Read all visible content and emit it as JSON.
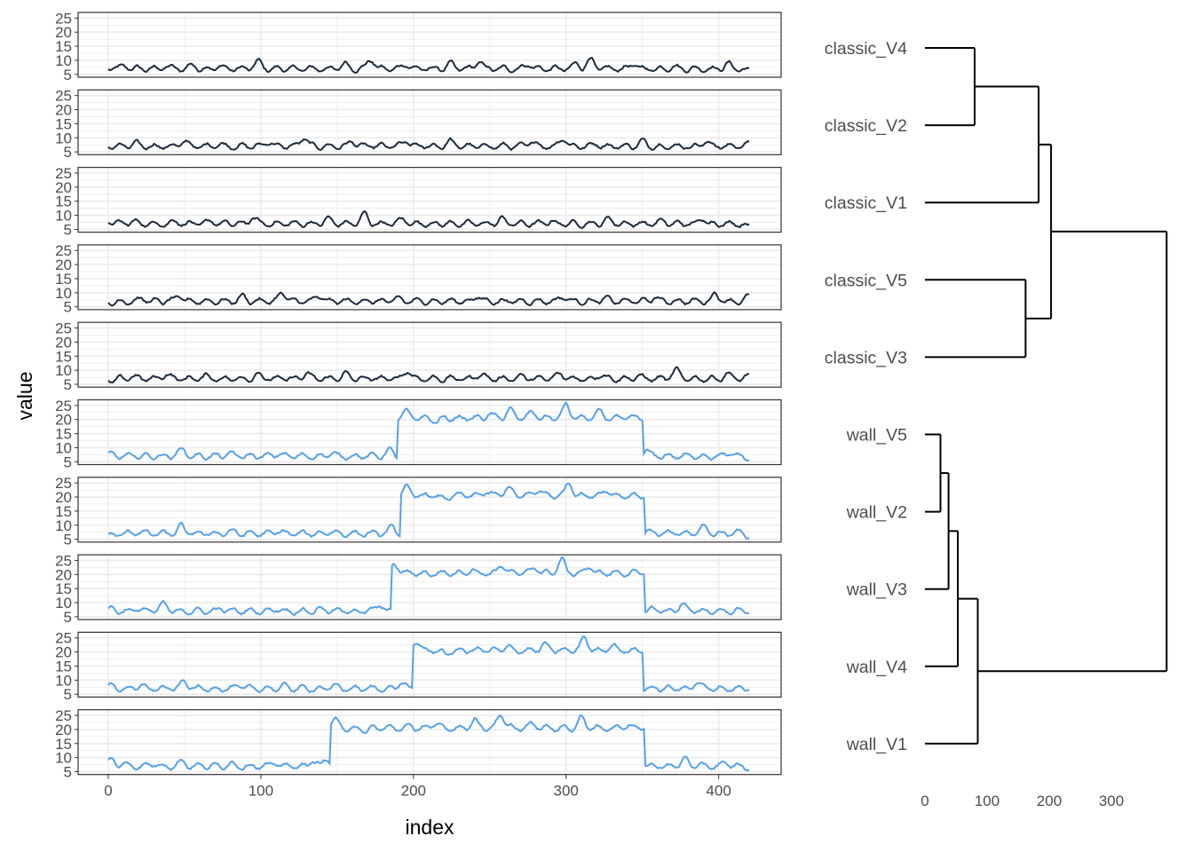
{
  "chart_data": [
    {
      "type": "line",
      "layout": "small-multiples",
      "xlabel": "index",
      "ylabel": "value",
      "xlim": [
        0,
        420
      ],
      "ylim": [
        4,
        27
      ],
      "x_ticks": [
        0,
        100,
        200,
        300,
        400
      ],
      "y_ticks": [
        5,
        10,
        15,
        20,
        25
      ],
      "grid": true,
      "theme": "bw",
      "baseline": 7,
      "elevated_level": 20.5,
      "series": [
        {
          "id": "classic_V4",
          "group": "classic",
          "color": "#1c2a3a",
          "peaks": [
            [
              2,
              7.5
            ],
            [
              11,
              8
            ],
            [
              38,
              8
            ],
            [
              55,
              8.5
            ],
            [
              73,
              8
            ],
            [
              98,
              10
            ],
            [
              155,
              9
            ],
            [
              172,
              11
            ],
            [
              195,
              9
            ],
            [
              224,
              9
            ],
            [
              243,
              10
            ],
            [
              275,
              9
            ],
            [
              307,
              9
            ],
            [
              316,
              11
            ],
            [
              344,
              9
            ],
            [
              370,
              8
            ],
            [
              406,
              9
            ],
            [
              420,
              6
            ]
          ]
        },
        {
          "id": "classic_V2",
          "group": "classic",
          "color": "#1c2a3a",
          "peaks": [
            [
              2,
              7
            ],
            [
              18,
              8
            ],
            [
              50,
              9
            ],
            [
              72,
              8
            ],
            [
              105,
              9
            ],
            [
              128,
              10.5
            ],
            [
              160,
              9
            ],
            [
              195,
              9
            ],
            [
              224,
              9
            ],
            [
              278,
              9
            ],
            [
              298,
              10.5
            ],
            [
              320,
              8
            ],
            [
              350,
              9
            ],
            [
              392,
              9
            ],
            [
              418,
              8
            ]
          ]
        },
        {
          "id": "classic_V1",
          "group": "classic",
          "color": "#1c2a3a",
          "peaks": [
            [
              2,
              8
            ],
            [
              16,
              8
            ],
            [
              44,
              8
            ],
            [
              68,
              8
            ],
            [
              95,
              9.5
            ],
            [
              144,
              9
            ],
            [
              168,
              11
            ],
            [
              193,
              9
            ],
            [
              258,
              9
            ],
            [
              290,
              8
            ],
            [
              328,
              9
            ],
            [
              362,
              8
            ],
            [
              390,
              9
            ],
            [
              420,
              6
            ]
          ]
        },
        {
          "id": "classic_V5",
          "group": "classic",
          "color": "#1c2a3a",
          "peaks": [
            [
              3,
              6
            ],
            [
              22,
              8
            ],
            [
              46,
              9
            ],
            [
              88,
              9
            ],
            [
              114,
              10.5
            ],
            [
              138,
              9
            ],
            [
              190,
              8
            ],
            [
              242,
              9
            ],
            [
              298,
              9
            ],
            [
              326,
              8
            ],
            [
              358,
              8.5
            ],
            [
              398,
              10
            ],
            [
              420,
              9
            ]
          ]
        },
        {
          "id": "classic_V3",
          "group": "classic",
          "color": "#1c2a3a",
          "peaks": [
            [
              3,
              6
            ],
            [
              16,
              8
            ],
            [
              38,
              9
            ],
            [
              64,
              8
            ],
            [
              98,
              9
            ],
            [
              130,
              9
            ],
            [
              155,
              9
            ],
            [
              196,
              10.5
            ],
            [
              244,
              9
            ],
            [
              270,
              8
            ],
            [
              296,
              9
            ],
            [
              323,
              9
            ],
            [
              348,
              8
            ],
            [
              372,
              10.5
            ],
            [
              406,
              9
            ],
            [
              420,
              8
            ]
          ]
        },
        {
          "id": "wall_V5",
          "group": "wall",
          "color": "#56a0ea",
          "change": [
            190,
            351
          ],
          "peaks": [
            [
              2,
              7.5
            ],
            [
              20,
              7
            ],
            [
              48,
              10
            ],
            [
              80,
              8
            ],
            [
              112,
              8
            ],
            [
              146,
              8
            ],
            [
              172,
              7
            ],
            [
              184,
              9.5
            ],
            [
              195,
              23
            ],
            [
              215,
              19
            ],
            [
              250,
              22
            ],
            [
              263,
              24
            ],
            [
              278,
              23
            ],
            [
              300,
              26
            ],
            [
              322,
              23
            ],
            [
              352,
              9.5
            ],
            [
              380,
              7
            ],
            [
              407,
              8
            ],
            [
              420,
              6
            ]
          ]
        },
        {
          "id": "wall_V2",
          "group": "wall",
          "color": "#56a0ea",
          "change": [
            192,
            352
          ],
          "peaks": [
            [
              2,
              6
            ],
            [
              20,
              8
            ],
            [
              48,
              10
            ],
            [
              80,
              8
            ],
            [
              112,
              8
            ],
            [
              146,
              8
            ],
            [
              172,
              7
            ],
            [
              186,
              9.5
            ],
            [
              195,
              24
            ],
            [
              220,
              19
            ],
            [
              248,
              22
            ],
            [
              262,
              24
            ],
            [
              282,
              23
            ],
            [
              302,
              26
            ],
            [
              326,
              23
            ],
            [
              354,
              8
            ],
            [
              390,
              10
            ],
            [
              412,
              8
            ],
            [
              420,
              6
            ]
          ]
        },
        {
          "id": "wall_V3",
          "group": "wall",
          "color": "#56a0ea",
          "change": [
            186,
            352
          ],
          "peaks": [
            [
              2,
              8
            ],
            [
              20,
              8
            ],
            [
              36,
              10
            ],
            [
              74,
              8
            ],
            [
              110,
              8
            ],
            [
              140,
              8
            ],
            [
              168,
              7
            ],
            [
              178,
              9.5
            ],
            [
              188,
              24
            ],
            [
              210,
              20
            ],
            [
              238,
              22
            ],
            [
              258,
              24
            ],
            [
              280,
              23
            ],
            [
              297,
              26
            ],
            [
              315,
              23
            ],
            [
              358,
              8
            ],
            [
              376,
              10
            ],
            [
              404,
              7
            ],
            [
              420,
              7.5
            ]
          ]
        },
        {
          "id": "wall_V4",
          "group": "wall",
          "color": "#56a0ea",
          "change": [
            200,
            351
          ],
          "peaks": [
            [
              2,
              8
            ],
            [
              22,
              8
            ],
            [
              50,
              10
            ],
            [
              86,
              8
            ],
            [
              116,
              8
            ],
            [
              148,
              8
            ],
            [
              176,
              7
            ],
            [
              192,
              9.5
            ],
            [
              202,
              24
            ],
            [
              222,
              19
            ],
            [
              244,
              21
            ],
            [
              262,
              22
            ],
            [
              286,
              23
            ],
            [
              312,
              26
            ],
            [
              330,
              23
            ],
            [
              352,
              7
            ],
            [
              386,
              10
            ],
            [
              408,
              7
            ],
            [
              420,
              7
            ]
          ]
        },
        {
          "id": "wall_V1",
          "group": "wall",
          "color": "#56a0ea",
          "change": [
            146,
            352
          ],
          "peaks": [
            [
              2,
              9.5
            ],
            [
              10,
              8
            ],
            [
              30,
              8
            ],
            [
              48,
              9
            ],
            [
              80,
              8
            ],
            [
              110,
              8
            ],
            [
              134,
              9
            ],
            [
              143,
              10
            ],
            [
              148,
              24
            ],
            [
              168,
              19
            ],
            [
              198,
              21
            ],
            [
              215,
              22
            ],
            [
              240,
              24
            ],
            [
              257,
              26
            ],
            [
              278,
              22
            ],
            [
              310,
              25
            ],
            [
              340,
              22
            ],
            [
              356,
              7
            ],
            [
              378,
              10
            ],
            [
              404,
              8
            ],
            [
              420,
              6
            ]
          ]
        }
      ]
    },
    {
      "type": "dendrogram",
      "orientation": "horizontal",
      "x_ticks": [
        0,
        100,
        200,
        300
      ],
      "leaves": [
        "classic_V4",
        "classic_V2",
        "classic_V1",
        "classic_V5",
        "classic_V3",
        "wall_V5",
        "wall_V2",
        "wall_V3",
        "wall_V4",
        "wall_V1"
      ],
      "merges": [
        {
          "a": "L0",
          "b": "L1",
          "height": 80
        },
        {
          "a": "M0",
          "b": "L2",
          "height": 183
        },
        {
          "a": "L3",
          "b": "L4",
          "height": 162
        },
        {
          "a": "M1",
          "b": "M2",
          "height": 203
        },
        {
          "a": "L5",
          "b": "L6",
          "height": 25
        },
        {
          "a": "M4",
          "b": "L7",
          "height": 38
        },
        {
          "a": "M5",
          "b": "L8",
          "height": 53
        },
        {
          "a": "M6",
          "b": "L9",
          "height": 85
        },
        {
          "a": "M3",
          "b": "M7",
          "height": 389
        }
      ]
    }
  ]
}
